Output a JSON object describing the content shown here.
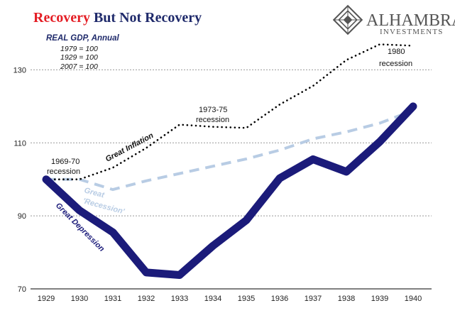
{
  "title_part1": "Recovery",
  "title_part2": " But Not Recovery",
  "logo": {
    "name": "ALHAMBRA",
    "sub": "INVESTMENTS"
  },
  "legend": {
    "heading": "REAL GDP, Annual",
    "lines": [
      "1979 = 100",
      "1929 = 100",
      "2007 = 100"
    ]
  },
  "colors": {
    "title_red": "#e41e25",
    "title_blue": "#1f2a6b",
    "depression": "#1b1b7a",
    "recession": "#b8cce4",
    "inflation": "#000000",
    "grid": "#999999",
    "logo": "#555555"
  },
  "annotations": {
    "r1969": [
      "1969-70",
      "recession"
    ],
    "r1973": [
      "1973-75",
      "recession"
    ],
    "r1980": [
      "1980",
      "recession"
    ],
    "great_inflation": "Great Inflation",
    "great_recession": [
      "Great",
      "'Recession'"
    ],
    "great_depression": "Great Depression"
  },
  "chart_data": {
    "type": "line",
    "x": [
      "1929",
      "1930",
      "1931",
      "1932",
      "1933",
      "1934",
      "1935",
      "1936",
      "1937",
      "1938",
      "1939",
      "1940"
    ],
    "ylim": [
      70,
      140
    ],
    "yticks": [
      70,
      90,
      110,
      130
    ],
    "grid": true,
    "series": [
      {
        "name": "Great Depression",
        "style": "solid-thick",
        "values": [
          100,
          91.5,
          85.5,
          74.5,
          73.8,
          81.8,
          88.8,
          100.3,
          105.5,
          102.1,
          110.3,
          120.0
        ]
      },
      {
        "name": "Great 'Recession'",
        "style": "dashed",
        "values": [
          100,
          100.0,
          97.2,
          99.6,
          101.6,
          103.6,
          105.6,
          108.0,
          111.1,
          113.0,
          115.4,
          118.9
        ]
      },
      {
        "name": "Great Inflation",
        "style": "dotted",
        "values": [
          100,
          100.0,
          103.2,
          108.6,
          115.0,
          114.4,
          114.1,
          120.5,
          125.6,
          132.7,
          137.0,
          136.6
        ]
      }
    ]
  }
}
